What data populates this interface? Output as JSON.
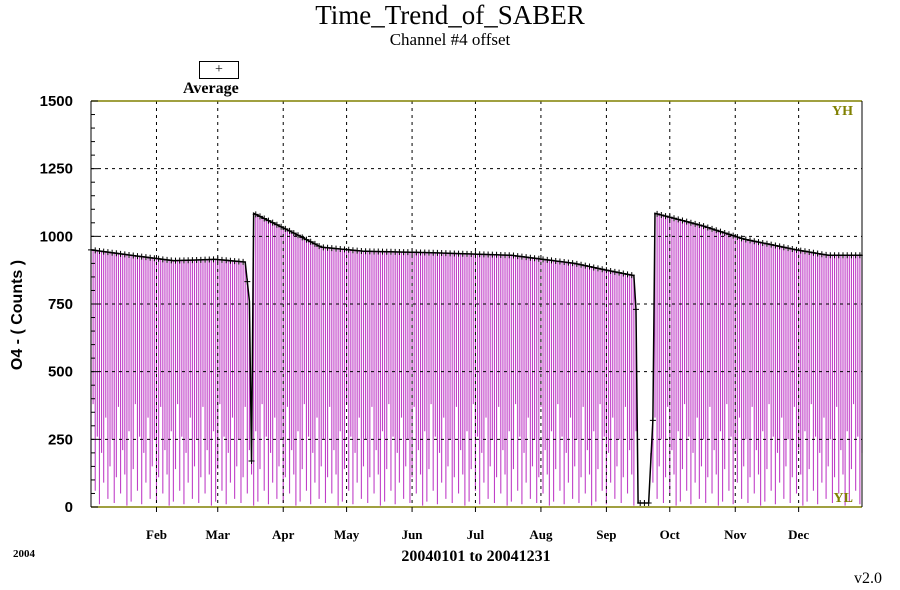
{
  "chart_data": {
    "type": "bar",
    "title": "Time_Trend_of_SABER",
    "subtitle": "Channel #4 offset",
    "ylabel": "O4  -  ( Counts )",
    "xlabel": "20040101 to 20041231",
    "year_label": "2004",
    "version": "v2.0",
    "legend": {
      "symbol": "+",
      "label": "Average"
    },
    "ylim": [
      0,
      1500
    ],
    "xlim": [
      1,
      366
    ],
    "y_ticks": [
      "0",
      "250",
      "500",
      "750",
      "1000",
      "1250",
      "1500"
    ],
    "y_tick_values": [
      0,
      250,
      500,
      750,
      1000,
      1250,
      1500
    ],
    "x_ticks": [
      {
        "label": "Feb",
        "day": 32
      },
      {
        "label": "Mar",
        "day": 61
      },
      {
        "label": "Apr",
        "day": 92
      },
      {
        "label": "May",
        "day": 122
      },
      {
        "label": "Jun",
        "day": 153
      },
      {
        "label": "Jul",
        "day": 183
      },
      {
        "label": "Aug",
        "day": 214
      },
      {
        "label": "Sep",
        "day": 245
      },
      {
        "label": "Oct",
        "day": 275
      },
      {
        "label": "Nov",
        "day": 306
      },
      {
        "label": "Dec",
        "day": 336
      }
    ],
    "limits": {
      "high_label": "YH",
      "low_label": "YL",
      "high": 1500,
      "low": 0
    },
    "grid": true,
    "colors": {
      "range": "#c040c8",
      "average": "#000000",
      "limit": "#808000",
      "grid": "#000000"
    },
    "average_trend": [
      {
        "day": 1,
        "value": 950
      },
      {
        "day": 20,
        "value": 930
      },
      {
        "day": 40,
        "value": 910
      },
      {
        "day": 60,
        "value": 915
      },
      {
        "day": 74,
        "value": 905
      },
      {
        "day": 76,
        "value": 760
      },
      {
        "day": 77,
        "value": 170
      },
      {
        "day": 78,
        "value": 1085
      },
      {
        "day": 95,
        "value": 1020
      },
      {
        "day": 110,
        "value": 960
      },
      {
        "day": 130,
        "value": 945
      },
      {
        "day": 160,
        "value": 940
      },
      {
        "day": 200,
        "value": 930
      },
      {
        "day": 230,
        "value": 900
      },
      {
        "day": 245,
        "value": 875
      },
      {
        "day": 258,
        "value": 855
      },
      {
        "day": 259,
        "value": 730
      },
      {
        "day": 260,
        "value": 15
      },
      {
        "day": 265,
        "value": 15
      },
      {
        "day": 267,
        "value": 320
      },
      {
        "day": 268,
        "value": 1085
      },
      {
        "day": 290,
        "value": 1040
      },
      {
        "day": 310,
        "value": 990
      },
      {
        "day": 335,
        "value": 950
      },
      {
        "day": 350,
        "value": 930
      },
      {
        "day": 366,
        "value": 930
      }
    ],
    "range_min_pattern": [
      20,
      140,
      380,
      60,
      260,
      10,
      200,
      90,
      330,
      30,
      150,
      250,
      15,
      110,
      370,
      50,
      210,
      120,
      5,
      280
    ]
  }
}
